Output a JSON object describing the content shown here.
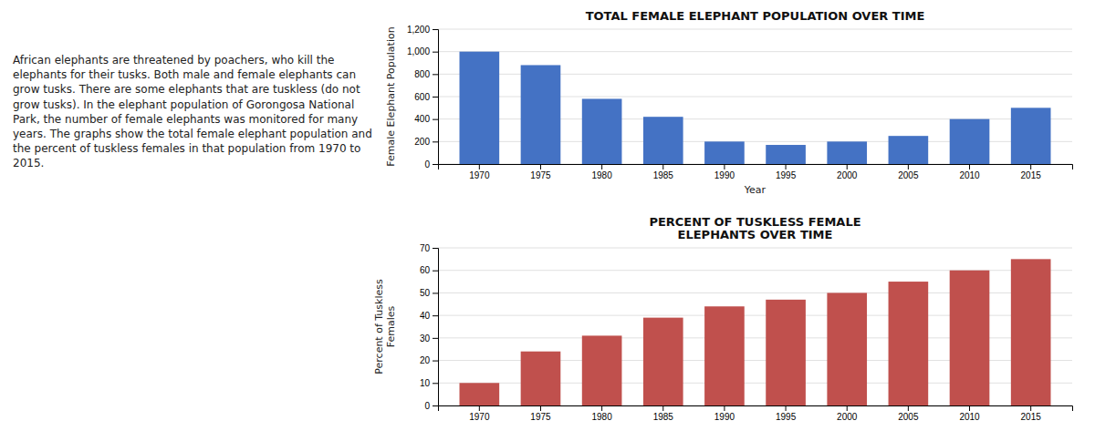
{
  "chart_data": [
    {
      "type": "bar",
      "title": "TOTAL FEMALE ELEPHANT POPULATION OVER TIME",
      "annotations": [
        "African elephants are threatened by poachers, who kill the elephants for their tusks. Both male and female elephants can grow tusks. There are some elephants that are tuskless (do not\ngrow tusks). In the elephant population of Gorongosa National Park, the number of female elephants was monitored for many years. The graphs show the total female elephant\npopulation and the percent of tuskless females in that population from 1970 to 2015."
      ],
      "xlabel": "Year",
      "ylabel": "Female Elephant Population",
      "categories": [
        1970,
        1975,
        1980,
        1985,
        1990,
        1995,
        2000,
        2005,
        2010,
        2015
      ],
      "values": [
        1000,
        880,
        580,
        420,
        200,
        170,
        200,
        250,
        400,
        500
      ],
      "color": "#4472C4",
      "ylim": [
        0,
        1200
      ],
      "yticks": [
        0,
        200,
        400,
        600,
        800,
        {
          "value": 1000,
          "label": "1,000"
        },
        {
          "value": 1200,
          "label": "1,200"
        }
      ],
      "grid": true
    },
    {
      "type": "bar",
      "title": "PERCENT OF TUSKLESS FEMALE\nELEPHANTS OVER TIME",
      "ylabel": "Percent of Tuskless\nFemales",
      "categories": [
        1970,
        1975,
        1980,
        1985,
        1990,
        1995,
        2000,
        2005,
        2010,
        2015
      ],
      "values": [
        10,
        24,
        31,
        39,
        44,
        47,
        50,
        55,
        60,
        65
      ],
      "color": "#C0504D",
      "ylim": [
        0,
        70
      ],
      "yticks": [
        0,
        10,
        20,
        30,
        40,
        50,
        60,
        70
      ],
      "grid": true
    }
  ]
}
